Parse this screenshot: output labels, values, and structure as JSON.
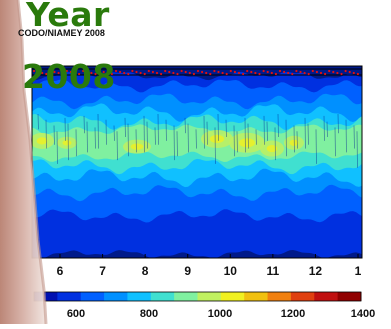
{
  "overlay": {
    "line1": "Year",
    "line2": "2008"
  },
  "chart_data": {
    "type": "heatmap",
    "title": "CODO/NIAMEY 2008",
    "x_ticks": [
      "6",
      "7",
      "8",
      "9",
      "10",
      "11",
      "12",
      "1"
    ],
    "colorbar": {
      "ticks": [
        600,
        800,
        1000,
        1200,
        1400
      ],
      "colors": [
        "#0010b0",
        "#0030e0",
        "#0060ff",
        "#0090ff",
        "#10c0ff",
        "#40e0d0",
        "#80f0a0",
        "#c0f060",
        "#f0f020",
        "#f0c010",
        "#f08010",
        "#e04010",
        "#c01010",
        "#900000"
      ]
    },
    "grid": false,
    "legend": "bottom colorbar"
  }
}
